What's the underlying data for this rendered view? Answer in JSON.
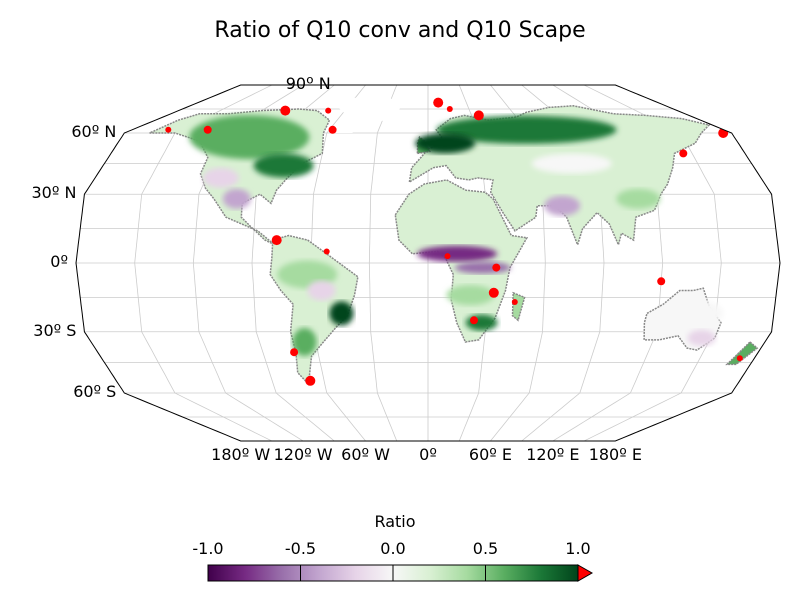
{
  "title": "Ratio of Q10 conv and Q10 Scape",
  "map": {
    "projection": "Robinson",
    "lat_labels": [
      {
        "lat": 90,
        "text": "90º N"
      },
      {
        "lat": 60,
        "text": "60º N"
      },
      {
        "lat": 30,
        "text": "30º N"
      },
      {
        "lat": 0,
        "text": "0º"
      },
      {
        "lat": -30,
        "text": "30º S"
      },
      {
        "lat": -60,
        "text": "60º S"
      }
    ],
    "lon_labels": [
      {
        "lon": -180,
        "text": "180º W"
      },
      {
        "lon": -120,
        "text": "120º W"
      },
      {
        "lon": -60,
        "text": "60º W"
      },
      {
        "lon": 0,
        "text": "0º"
      },
      {
        "lon": 60,
        "text": "60º E"
      },
      {
        "lon": 120,
        "text": "120º E"
      },
      {
        "lon": 180,
        "text": "180º E"
      }
    ],
    "gridlines": true,
    "colors": {
      "strong_negative": "#40004b",
      "neutral": "#f7f7f7",
      "strong_positive": "#00441b",
      "overflow": "#ff0000",
      "coastline": "#888888",
      "grid": "#cccccc"
    }
  },
  "colorbar": {
    "title": "Ratio",
    "min": -1.0,
    "max": 1.0,
    "ticks": [
      {
        "value": -1.0,
        "text": "-1.0"
      },
      {
        "value": -0.5,
        "text": "-0.5"
      },
      {
        "value": 0.0,
        "text": "0.0"
      },
      {
        "value": 0.5,
        "text": "0.5"
      },
      {
        "value": 1.0,
        "text": "1.0"
      }
    ],
    "extend": "max",
    "stops": [
      "#40004b",
      "#762a83",
      "#9970ab",
      "#c2a5cf",
      "#e7d4e8",
      "#f7f7f7",
      "#d9f0d3",
      "#a6dba0",
      "#5aae61",
      "#1b7837",
      "#00441b"
    ]
  }
}
